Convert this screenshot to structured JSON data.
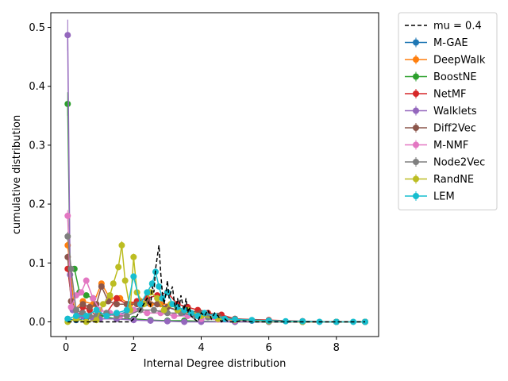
{
  "chart_data": {
    "type": "line",
    "xlabel": "Internal Degree distribution",
    "ylabel": "cumulative distribution",
    "xlim": [
      -0.45,
      9.25
    ],
    "ylim": [
      -0.025,
      0.525
    ],
    "xticks": [
      0,
      2,
      4,
      6,
      8
    ],
    "yticks": [
      0.0,
      0.1,
      0.2,
      0.3,
      0.4,
      0.5
    ],
    "ytick_labels": [
      "0.0",
      "0.1",
      "0.2",
      "0.3",
      "0.4",
      "0.5"
    ],
    "grid": false,
    "legend": "outside-upper-right",
    "reference": {
      "name": "mu = 0.4",
      "color": "#000000",
      "style": "dashed",
      "x": [
        0.05,
        0.5,
        1.0,
        1.5,
        1.7,
        1.9,
        2.0,
        2.1,
        2.2,
        2.3,
        2.4,
        2.5,
        2.55,
        2.6,
        2.65,
        2.7,
        2.75,
        2.8,
        2.85,
        2.9,
        2.95,
        3.0,
        3.05,
        3.1,
        3.15,
        3.2,
        3.25,
        3.3,
        3.35,
        3.4,
        3.45,
        3.5,
        3.55,
        3.6,
        3.65,
        3.7,
        3.8,
        3.9,
        4.0,
        4.1,
        4.2,
        4.3,
        4.4,
        4.5,
        4.6,
        4.7,
        4.8,
        5.0,
        5.2,
        5.5,
        6.0,
        7.0,
        8.0,
        8.85
      ],
      "y": [
        0.0,
        0.0,
        0.0,
        0.0,
        0.0,
        0.0,
        0.005,
        0.01,
        0.02,
        0.03,
        0.04,
        0.025,
        0.06,
        0.05,
        0.09,
        0.11,
        0.13,
        0.085,
        0.05,
        0.03,
        0.045,
        0.07,
        0.04,
        0.05,
        0.06,
        0.035,
        0.02,
        0.04,
        0.025,
        0.045,
        0.03,
        0.02,
        0.04,
        0.015,
        0.025,
        0.01,
        0.005,
        0.0,
        0.015,
        0.01,
        0.02,
        0.005,
        0.015,
        0.01,
        0.0,
        0.005,
        0.0,
        0.0,
        0.002,
        0.0,
        0.0,
        0.0,
        0.0,
        0.0
      ]
    },
    "series": [
      {
        "name": "M-GAE",
        "color": "#1f77b4",
        "x": [
          0.05,
          0.3,
          0.6,
          1.0,
          1.5,
          2.0,
          2.5,
          3.0,
          3.5,
          4.0,
          4.5,
          5.0,
          5.5,
          6.0,
          7.0,
          8.0,
          8.85
        ],
        "y": [
          0.005,
          0.003,
          0.006,
          0.01,
          0.012,
          0.02,
          0.03,
          0.025,
          0.015,
          0.01,
          0.005,
          0.003,
          0.002,
          0.001,
          0.0,
          0.0,
          0.0
        ]
      },
      {
        "name": "DeepWalk",
        "color": "#ff7f0e",
        "x": [
          0.05,
          0.25,
          0.5,
          0.8,
          1.05,
          1.3,
          1.6,
          1.9,
          2.2,
          2.5,
          2.8,
          3.1,
          3.5,
          4.0,
          4.5,
          5.0,
          6.0,
          7.0,
          8.0,
          8.85
        ],
        "y": [
          0.13,
          0.02,
          0.035,
          0.03,
          0.065,
          0.04,
          0.04,
          0.03,
          0.035,
          0.03,
          0.03,
          0.03,
          0.02,
          0.015,
          0.005,
          0.003,
          0.002,
          0.0,
          0.0,
          0.0
        ]
      },
      {
        "name": "BoostNE",
        "color": "#2ca02c",
        "x": [
          0.05,
          0.12,
          0.25,
          0.4,
          0.6,
          0.8,
          1.0,
          1.5,
          2.0,
          2.5,
          3.0,
          3.5,
          4.0,
          5.0,
          6.0,
          7.0,
          8.0,
          8.85
        ],
        "y": [
          0.37,
          0.09,
          0.09,
          0.05,
          0.045,
          0.04,
          0.01,
          0.005,
          0.005,
          0.003,
          0.002,
          0.002,
          0.001,
          0.0,
          0.0,
          0.0,
          0.0,
          0.0
        ]
      },
      {
        "name": "NetMF",
        "color": "#d62728",
        "x": [
          0.05,
          0.2,
          0.35,
          0.5,
          0.7,
          0.9,
          1.2,
          1.5,
          1.8,
          2.1,
          2.4,
          2.7,
          3.0,
          3.3,
          3.6,
          3.9,
          4.2,
          4.6,
          5.0,
          6.0,
          7.0,
          8.0,
          8.85
        ],
        "y": [
          0.09,
          0.02,
          0.01,
          0.025,
          0.02,
          0.01,
          0.015,
          0.04,
          0.03,
          0.035,
          0.04,
          0.045,
          0.05,
          0.03,
          0.025,
          0.02,
          0.015,
          0.012,
          0.005,
          0.003,
          0.001,
          0.0,
          0.0
        ]
      },
      {
        "name": "Walklets",
        "color": "#9467bd",
        "x": [
          0.05,
          0.12,
          0.2,
          0.35,
          0.5,
          0.8,
          1.0,
          1.5,
          2.0,
          2.5,
          3.0,
          3.5,
          4.0,
          5.0,
          6.0,
          7.0,
          8.0,
          8.85
        ],
        "y": [
          0.487,
          0.08,
          0.02,
          0.01,
          0.01,
          0.005,
          0.005,
          0.005,
          0.003,
          0.002,
          0.001,
          0.0,
          0.0,
          0.0,
          0.0,
          0.0,
          0.0,
          0.0
        ]
      },
      {
        "name": "Diff2Vec",
        "color": "#8c564b",
        "x": [
          0.05,
          0.15,
          0.3,
          0.5,
          0.7,
          0.9,
          1.05,
          1.25,
          1.5,
          1.8,
          2.1,
          2.4,
          2.7,
          3.0,
          3.3,
          3.6,
          4.0,
          4.5,
          5.0,
          6.0,
          7.0,
          8.0,
          8.85
        ],
        "y": [
          0.11,
          0.035,
          0.02,
          0.03,
          0.025,
          0.03,
          0.06,
          0.035,
          0.03,
          0.03,
          0.03,
          0.035,
          0.03,
          0.025,
          0.02,
          0.02,
          0.015,
          0.01,
          0.005,
          0.002,
          0.001,
          0.0,
          0.0
        ]
      },
      {
        "name": "M-NMF",
        "color": "#e377c2",
        "x": [
          0.05,
          0.15,
          0.3,
          0.45,
          0.6,
          0.8,
          1.0,
          1.3,
          1.6,
          2.0,
          2.4,
          2.8,
          3.2,
          3.6,
          4.0,
          4.5,
          5.0,
          6.0,
          7.0,
          8.0,
          8.85
        ],
        "y": [
          0.18,
          0.025,
          0.045,
          0.05,
          0.07,
          0.04,
          0.02,
          0.015,
          0.01,
          0.02,
          0.015,
          0.015,
          0.01,
          0.01,
          0.005,
          0.004,
          0.002,
          0.001,
          0.0,
          0.0,
          0.0
        ]
      },
      {
        "name": "Node2Vec",
        "color": "#7f7f7f",
        "x": [
          0.05,
          0.15,
          0.3,
          0.5,
          0.7,
          0.9,
          1.2,
          1.5,
          1.8,
          2.2,
          2.6,
          3.0,
          3.4,
          3.8,
          4.2,
          4.6,
          5.0,
          6.0,
          7.0,
          8.0,
          8.85
        ],
        "y": [
          0.145,
          0.09,
          0.02,
          0.015,
          0.01,
          0.01,
          0.015,
          0.01,
          0.01,
          0.02,
          0.02,
          0.015,
          0.015,
          0.01,
          0.008,
          0.005,
          0.003,
          0.001,
          0.0,
          0.0,
          0.0
        ]
      },
      {
        "name": "RandNE",
        "color": "#bcbd22",
        "x": [
          0.05,
          0.3,
          0.6,
          0.9,
          1.1,
          1.3,
          1.4,
          1.55,
          1.65,
          1.75,
          1.9,
          2.0,
          2.1,
          2.3,
          2.5,
          2.7,
          2.9,
          3.1,
          3.3,
          3.6,
          4.0,
          4.5,
          5.0,
          6.0,
          7.0,
          8.0,
          8.85
        ],
        "y": [
          0.0,
          0.005,
          0.0,
          0.003,
          0.03,
          0.045,
          0.065,
          0.093,
          0.13,
          0.07,
          0.02,
          0.11,
          0.05,
          0.03,
          0.05,
          0.04,
          0.02,
          0.03,
          0.02,
          0.02,
          0.01,
          0.005,
          0.003,
          0.001,
          0.0,
          0.0,
          0.0
        ]
      },
      {
        "name": "LEM",
        "color": "#17becf",
        "x": [
          0.05,
          0.3,
          0.6,
          0.9,
          1.2,
          1.5,
          1.8,
          2.0,
          2.2,
          2.4,
          2.55,
          2.65,
          2.75,
          2.85,
          3.0,
          3.15,
          3.3,
          3.5,
          3.7,
          3.9,
          4.1,
          4.4,
          4.7,
          5.0,
          5.5,
          6.0,
          6.5,
          7.0,
          7.5,
          8.0,
          8.5,
          8.85
        ],
        "y": [
          0.005,
          0.01,
          0.01,
          0.02,
          0.01,
          0.015,
          0.02,
          0.077,
          0.03,
          0.05,
          0.065,
          0.085,
          0.06,
          0.04,
          0.05,
          0.03,
          0.025,
          0.02,
          0.015,
          0.01,
          0.015,
          0.01,
          0.005,
          0.004,
          0.003,
          0.002,
          0.001,
          0.001,
          0.0,
          0.0,
          0.0,
          0.0
        ]
      }
    ]
  }
}
